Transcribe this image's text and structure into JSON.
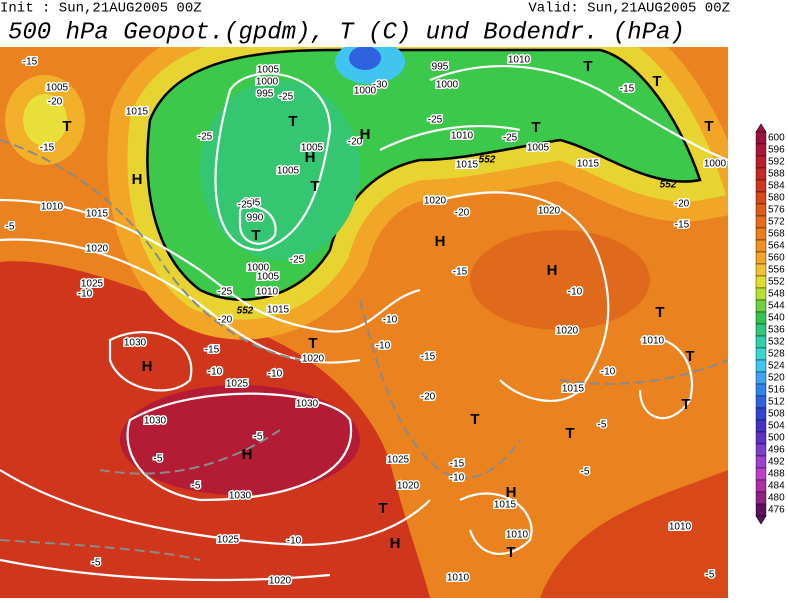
{
  "header": {
    "init": "Init : Sun,21AUG2005 00Z",
    "valid": "Valid: Sun,21AUG2005 00Z",
    "title": "500 hPa Geopot.(gpdm), T (C) und Bodendr. (hPa)"
  },
  "colorbar": {
    "ticks": [
      600,
      596,
      592,
      588,
      584,
      580,
      576,
      572,
      568,
      564,
      560,
      556,
      552,
      548,
      544,
      540,
      536,
      532,
      528,
      524,
      520,
      516,
      512,
      508,
      504,
      500,
      496,
      492,
      488,
      484,
      480,
      476
    ],
    "colors": [
      "#9c1040",
      "#ac1536",
      "#bc1c2c",
      "#c82824",
      "#d0361c",
      "#d84818",
      "#e05a18",
      "#e66c18",
      "#ec7e1c",
      "#f09020",
      "#f2a628",
      "#f2c030",
      "#e2dc30",
      "#b4e030",
      "#6ad040",
      "#34c250",
      "#30c67c",
      "#30ceaa",
      "#3cd6d2",
      "#40c4f0",
      "#3ea4f0",
      "#3282ee",
      "#3062e0",
      "#3244d0",
      "#4232c4",
      "#5e30c4",
      "#7e3ccc",
      "#9c40d0",
      "#bc40c4",
      "#b030a4",
      "#902284",
      "#5e1060"
    ]
  },
  "map": {
    "pressure": [
      "1005",
      "1015",
      "1010",
      "1015",
      "1020",
      "1025",
      "1030",
      "1030",
      "1030",
      "1030",
      "1025",
      "1020",
      "1025",
      "1020",
      "1015",
      "1010",
      "1010",
      "1010",
      "1015",
      "1020",
      "1020",
      "1015",
      "1010",
      "1005",
      "1000",
      "995",
      "1010",
      "1000",
      "1010",
      "1015",
      "1020",
      "1025",
      "1010",
      "1005",
      "1000",
      "990",
      "995",
      "1005",
      "1005",
      "1000",
      "1005",
      "995",
      "1000",
      "1015",
      "1020"
    ],
    "temperature": [
      "-15",
      "-20",
      "-15",
      "-5",
      "-10",
      "-20",
      "-15",
      "-10",
      "-10",
      "-25",
      "-25",
      "-25",
      "-25",
      "-25",
      "-20",
      "-25",
      "-25",
      "-20",
      "-15",
      "-10",
      "-10",
      "-15",
      "-20",
      "-10",
      "-5",
      "-5",
      "-5",
      "-5",
      "-5",
      "-15",
      "-10",
      "-10",
      "-5",
      "-10",
      "-15",
      "-20",
      "-15",
      "-5",
      "-30"
    ],
    "centers": [
      "T",
      "H",
      "T",
      "H",
      "H",
      "T",
      "T",
      "H",
      "H",
      "T",
      "T",
      "T",
      "T",
      "T",
      "T",
      "T",
      "T",
      "T",
      "T",
      "H",
      "H",
      "T",
      "H",
      "H",
      "T"
    ],
    "contour": [
      "552",
      "552",
      "552"
    ]
  }
}
